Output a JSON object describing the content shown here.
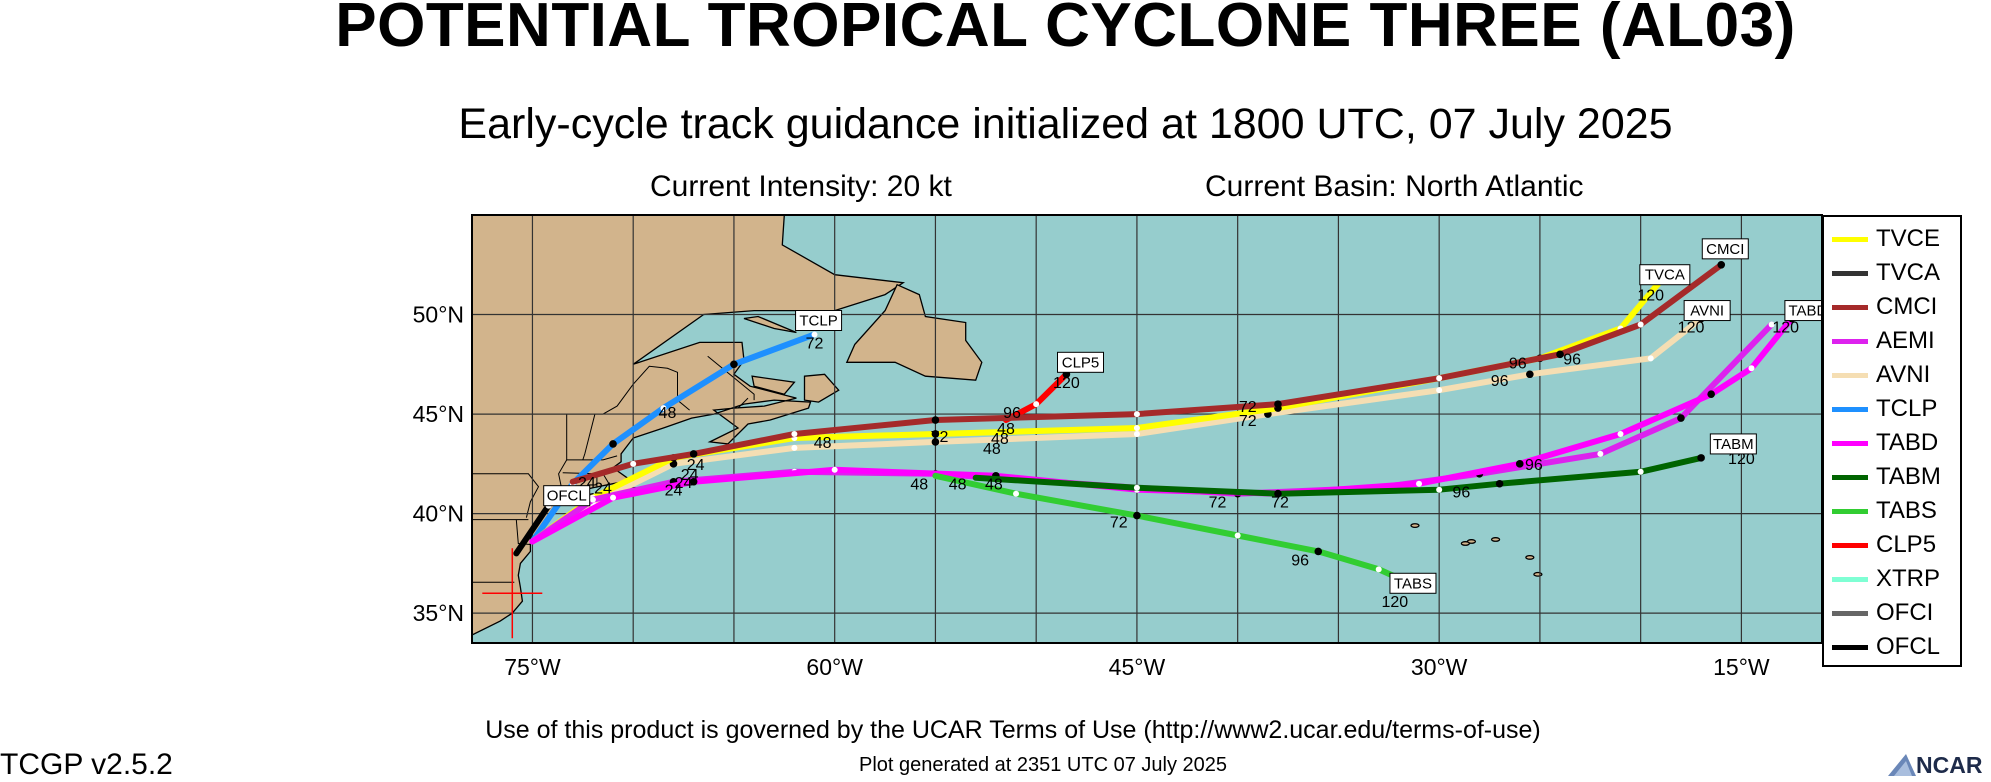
{
  "title": "POTENTIAL TROPICAL CYCLONE THREE (AL03)",
  "subtitle": "Early-cycle track guidance initialized at 1800 UTC, 07 July 2025",
  "intensity": "Current Intensity: 20 kt",
  "basin": "Current Basin: North Atlantic",
  "terms": "Use of this product is governed by the UCAR Terms of Use (http://www2.ucar.edu/terms-of-use)",
  "plot_generated": "Plot generated at 2351 UTC   07 July 2025",
  "version": "TCGP v2.5.2",
  "logo_text": "NCAR",
  "map": {
    "lon_range": [
      -78,
      -11
    ],
    "lat_range": [
      33.5,
      55
    ],
    "lat_ticks": [
      {
        "v": 50,
        "label": "50°N"
      },
      {
        "v": 45,
        "label": "45°N"
      },
      {
        "v": 40,
        "label": "40°N"
      },
      {
        "v": 35,
        "label": "35°N"
      }
    ],
    "lon_ticks": [
      {
        "v": -75,
        "label": "75°W"
      },
      {
        "v": -60,
        "label": "60°W"
      },
      {
        "v": -45,
        "label": "45°W"
      },
      {
        "v": -30,
        "label": "30°W"
      },
      {
        "v": -15,
        "label": "15°W"
      }
    ],
    "ocean_color": "#96cdcd",
    "land_color": "#d2b48c",
    "grid": true,
    "initial_position": {
      "lon": -76,
      "lat": 36.0
    }
  },
  "legend": [
    {
      "name": "TVCE",
      "color": "#ffff00"
    },
    {
      "name": "TVCA",
      "color": "#333333"
    },
    {
      "name": "CMCI",
      "color": "#a52a2a"
    },
    {
      "name": "AEMI",
      "color": "#dd22ee"
    },
    {
      "name": "AVNI",
      "color": "#f5deb3"
    },
    {
      "name": "TCLP",
      "color": "#1e90ff"
    },
    {
      "name": "TABD",
      "color": "#ff00ff"
    },
    {
      "name": "TABM",
      "color": "#006400"
    },
    {
      "name": "TABS",
      "color": "#32cd32"
    },
    {
      "name": "CLP5",
      "color": "#ff0000"
    },
    {
      "name": "XTRP",
      "color": "#7fffd4"
    },
    {
      "name": "OFCI",
      "color": "#666666"
    },
    {
      "name": "OFCL",
      "color": "#000000"
    }
  ],
  "tracks": [
    {
      "name": "TCLP",
      "color": "#1e90ff",
      "label": "TCLP",
      "end_hour": "72",
      "points": [
        [
          -75.0,
          38.6
        ],
        [
          -73.0,
          41.5
        ],
        [
          -71.0,
          43.5
        ],
        [
          -68.5,
          45.3
        ],
        [
          -65.0,
          47.5
        ],
        [
          -61.0,
          49.0
        ]
      ]
    },
    {
      "name": "CLP5",
      "color": "#ff0000",
      "label": "CLP5",
      "end_hour": "120",
      "points": [
        [
          -51.5,
          44.7
        ],
        [
          -50.0,
          45.5
        ],
        [
          -48.5,
          47.0
        ]
      ]
    },
    {
      "name": "AVNI",
      "color": "#f5deb3",
      "label": "AVNI",
      "end_hour": "120",
      "points": [
        [
          -75.0,
          38.6
        ],
        [
          -72.0,
          40.5
        ],
        [
          -68.0,
          42.5
        ],
        [
          -62.0,
          43.3
        ],
        [
          -55.0,
          43.6
        ],
        [
          -45.0,
          44.0
        ],
        [
          -38.5,
          45.0
        ],
        [
          -30.0,
          46.2
        ],
        [
          -25.5,
          47.0
        ],
        [
          -19.5,
          47.8
        ],
        [
          -17.0,
          49.8
        ]
      ]
    },
    {
      "name": "TVCE",
      "color": "#ffff00",
      "label": "",
      "end_hour": "",
      "points": [
        [
          -75.0,
          38.6
        ],
        [
          -72.0,
          40.8
        ],
        [
          -68.0,
          42.8
        ],
        [
          -62.0,
          43.8
        ],
        [
          -55.0,
          44.0
        ],
        [
          -45.0,
          44.3
        ],
        [
          -38.0,
          45.3
        ],
        [
          -30.0,
          46.8
        ],
        [
          -25.0,
          47.8
        ],
        [
          -21.0,
          49.3
        ],
        [
          -19.0,
          51.7
        ]
      ]
    },
    {
      "name": "CMCI",
      "color": "#a52a2a",
      "label": "CMCI",
      "end_hour": "120",
      "points": [
        [
          -73.0,
          41.6
        ],
        [
          -70.0,
          42.5
        ],
        [
          -67.0,
          43.0
        ],
        [
          -62.0,
          44.0
        ],
        [
          -55.0,
          44.7
        ],
        [
          -45.0,
          45.0
        ],
        [
          -38.0,
          45.5
        ],
        [
          -30.0,
          46.8
        ],
        [
          -24.0,
          48.0
        ],
        [
          -20.0,
          49.5
        ],
        [
          -16.0,
          52.5
        ]
      ]
    },
    {
      "name": "AEMI",
      "color": "#dd22ee",
      "label": "",
      "end_hour": "",
      "points": [
        [
          -75.0,
          38.6
        ],
        [
          -72.0,
          40.7
        ],
        [
          -68.0,
          41.6
        ],
        [
          -62.0,
          42.1
        ],
        [
          -55.0,
          42.0
        ],
        [
          -45.0,
          41.3
        ],
        [
          -40.0,
          41.0
        ],
        [
          -33.0,
          41.3
        ],
        [
          -28.0,
          42.0
        ],
        [
          -22.0,
          43.0
        ],
        [
          -18.0,
          44.8
        ],
        [
          -13.5,
          49.5
        ]
      ]
    },
    {
      "name": "TABD",
      "color": "#ff00ff",
      "label": "TABD",
      "end_hour": "120",
      "points": [
        [
          -75.0,
          38.6
        ],
        [
          -71.0,
          40.8
        ],
        [
          -67.0,
          41.6
        ],
        [
          -60.0,
          42.2
        ],
        [
          -52.0,
          41.9
        ],
        [
          -45.0,
          41.2
        ],
        [
          -38.0,
          41.0
        ],
        [
          -31.0,
          41.5
        ],
        [
          -26.0,
          42.5
        ],
        [
          -21.0,
          44.0
        ],
        [
          -16.5,
          46.0
        ],
        [
          -14.5,
          47.3
        ],
        [
          -12.5,
          49.8
        ]
      ]
    },
    {
      "name": "TABM",
      "color": "#006400",
      "label": "TABM",
      "end_hour": "120",
      "points": [
        [
          -53.0,
          41.8
        ],
        [
          -45.0,
          41.3
        ],
        [
          -38.0,
          41.0
        ],
        [
          -30.0,
          41.2
        ],
        [
          -27.0,
          41.5
        ],
        [
          -20.0,
          42.1
        ],
        [
          -17.0,
          42.8
        ]
      ]
    },
    {
      "name": "TABS",
      "color": "#32cd32",
      "label": "TABS",
      "end_hour": "120",
      "points": [
        [
          -55.0,
          41.9
        ],
        [
          -51.0,
          41.0
        ],
        [
          -45.0,
          39.9
        ],
        [
          -40.0,
          38.9
        ],
        [
          -36.0,
          38.1
        ],
        [
          -33.0,
          37.2
        ],
        [
          -31.0,
          36.3
        ]
      ]
    },
    {
      "name": "OFCL",
      "color": "#000000",
      "label": "OFCL",
      "end_hour": "",
      "points": [
        [
          -75.8,
          38.0
        ],
        [
          -74.2,
          40.4
        ]
      ]
    }
  ],
  "hour_labels": [
    {
      "text": "72",
      "lon": -61.0,
      "lat": 48.6
    },
    {
      "text": "120",
      "lon": -48.5,
      "lat": 46.6
    },
    {
      "text": "96",
      "lon": -51.2,
      "lat": 45.1
    },
    {
      "text": "48",
      "lon": -51.5,
      "lat": 44.3
    },
    {
      "text": "48",
      "lon": -51.8,
      "lat": 43.8
    },
    {
      "text": "48",
      "lon": -52.2,
      "lat": 43.3
    },
    {
      "text": "48",
      "lon": -60.6,
      "lat": 43.6
    },
    {
      "text": "72",
      "lon": -54.8,
      "lat": 43.9
    },
    {
      "text": "48",
      "lon": -68.3,
      "lat": 45.1
    },
    {
      "text": "24",
      "lon": -66.9,
      "lat": 42.5
    },
    {
      "text": "24",
      "lon": -67.2,
      "lat": 42.0
    },
    {
      "text": "24",
      "lon": -67.5,
      "lat": 41.6
    },
    {
      "text": "24",
      "lon": -68.0,
      "lat": 41.2
    },
    {
      "text": "24",
      "lon": -72.3,
      "lat": 41.6
    },
    {
      "text": "24",
      "lon": -71.5,
      "lat": 41.3
    },
    {
      "text": "48",
      "lon": -55.8,
      "lat": 41.5
    },
    {
      "text": "48",
      "lon": -53.9,
      "lat": 41.5
    },
    {
      "text": "48",
      "lon": -52.1,
      "lat": 41.5
    },
    {
      "text": "72",
      "lon": -45.9,
      "lat": 39.6
    },
    {
      "text": "96",
      "lon": -36.9,
      "lat": 37.7
    },
    {
      "text": "72",
      "lon": -41.0,
      "lat": 40.6
    },
    {
      "text": "72",
      "lon": -37.9,
      "lat": 40.6
    },
    {
      "text": "96",
      "lon": -28.9,
      "lat": 41.1
    },
    {
      "text": "96",
      "lon": -25.3,
      "lat": 42.5
    },
    {
      "text": "72",
      "lon": -39.5,
      "lat": 45.4
    },
    {
      "text": "72",
      "lon": -39.5,
      "lat": 44.7
    },
    {
      "text": "96",
      "lon": -26.1,
      "lat": 47.6
    },
    {
      "text": "96",
      "lon": -27.0,
      "lat": 46.7
    },
    {
      "text": "96",
      "lon": -23.4,
      "lat": 47.8
    },
    {
      "text": "120",
      "lon": -19.5,
      "lat": 51.0
    },
    {
      "text": "120",
      "lon": -17.5,
      "lat": 49.4
    },
    {
      "text": "120",
      "lon": -12.8,
      "lat": 49.4
    },
    {
      "text": "120",
      "lon": -15.0,
      "lat": 42.8
    },
    {
      "text": "120",
      "lon": -32.2,
      "lat": 35.6
    }
  ]
}
